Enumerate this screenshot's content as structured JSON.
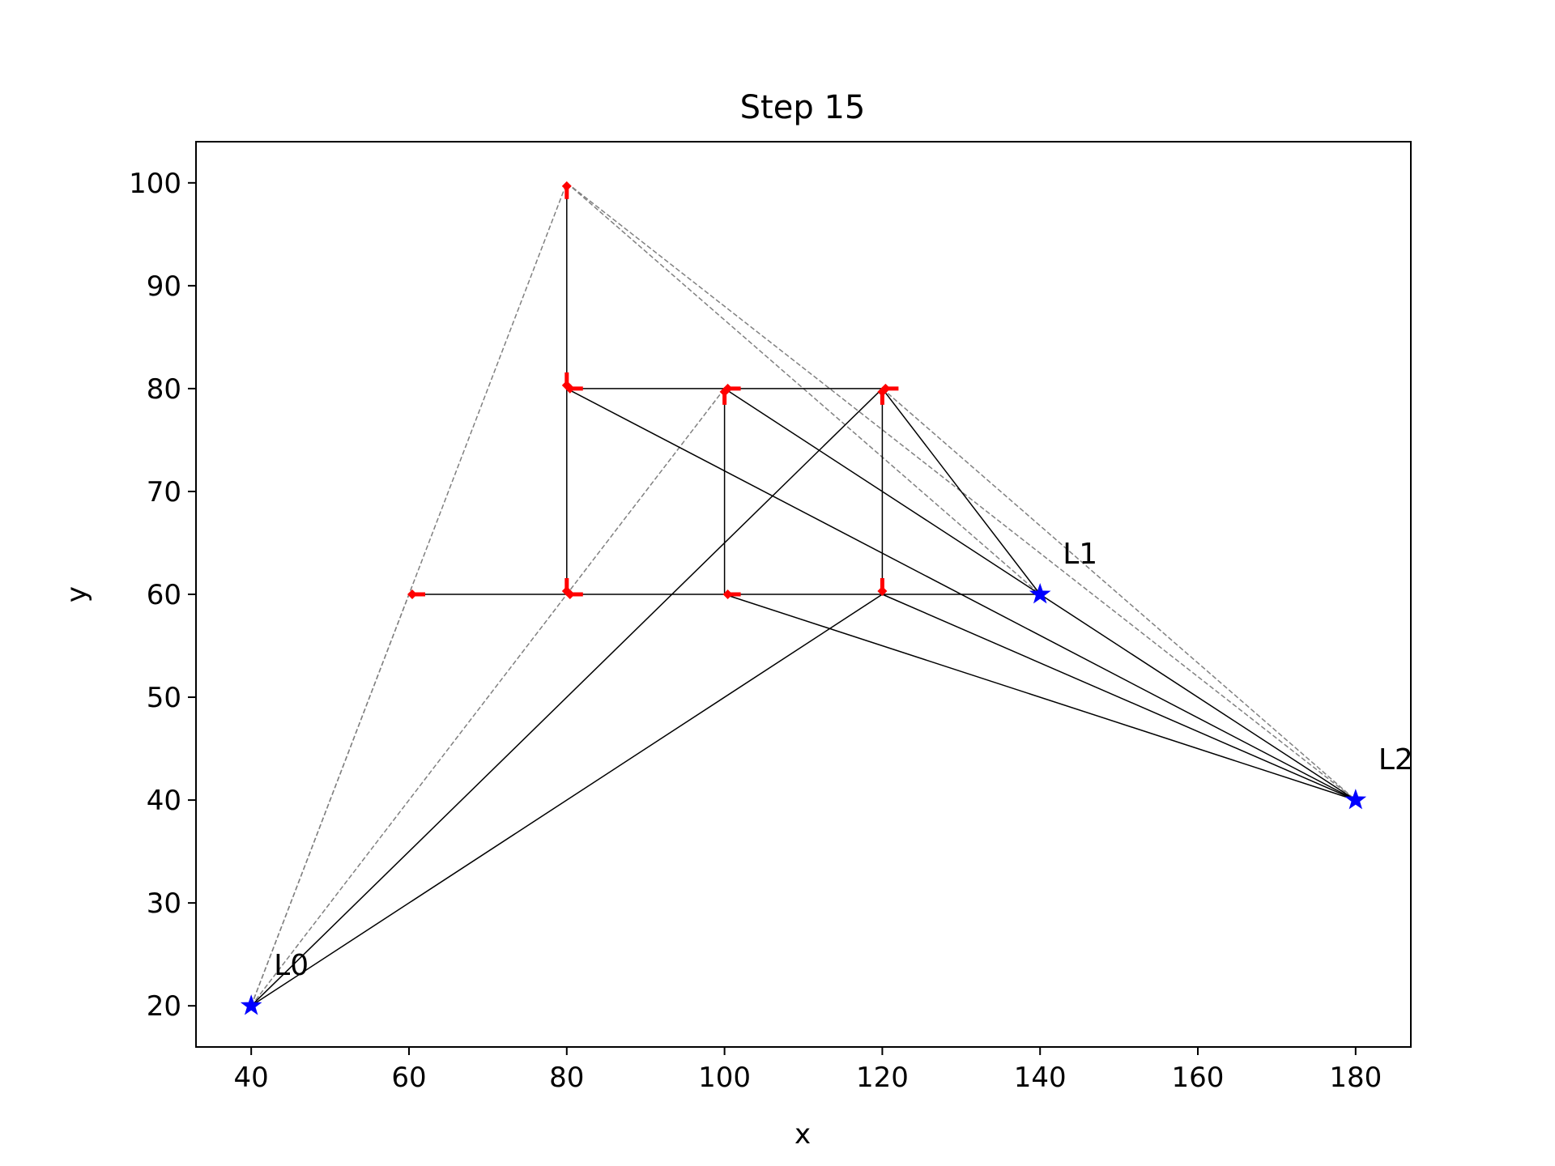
{
  "chart_data": {
    "type": "scatter",
    "title": "Step 15",
    "xlabel": "x",
    "ylabel": "y",
    "xlim": [
      33,
      187
    ],
    "ylim": [
      16,
      104
    ],
    "xticks": [
      40,
      60,
      80,
      100,
      120,
      140,
      160,
      180
    ],
    "yticks": [
      20,
      30,
      40,
      50,
      60,
      70,
      80,
      90,
      100
    ],
    "grid": false,
    "colors": {
      "landmark": "#0000ff",
      "pose": "#ff0000",
      "edge": "#000000",
      "observation": "#808080"
    },
    "landmarks": [
      {
        "label": "L0",
        "x": 40,
        "y": 20
      },
      {
        "label": "L1",
        "x": 140,
        "y": 60
      },
      {
        "label": "L2",
        "x": 180,
        "y": 40
      }
    ],
    "poses": [
      {
        "x": 60,
        "y": 60,
        "heading": 0
      },
      {
        "x": 80,
        "y": 60,
        "heading": 0
      },
      {
        "x": 80,
        "y": 60,
        "heading": 90
      },
      {
        "x": 80,
        "y": 80,
        "heading": 90
      },
      {
        "x": 80,
        "y": 100,
        "heading": 270
      },
      {
        "x": 80,
        "y": 80,
        "heading": 0
      },
      {
        "x": 100,
        "y": 80,
        "heading": 0
      },
      {
        "x": 100,
        "y": 80,
        "heading": 270
      },
      {
        "x": 100,
        "y": 60,
        "heading": 0
      },
      {
        "x": 120,
        "y": 60,
        "heading": 90
      },
      {
        "x": 120,
        "y": 80,
        "heading": 0
      },
      {
        "x": 120,
        "y": 80,
        "heading": 270
      }
    ],
    "trajectory": [
      [
        [
          60,
          60
        ],
        [
          140,
          60
        ]
      ],
      [
        [
          80,
          60
        ],
        [
          80,
          100
        ]
      ],
      [
        [
          80,
          80
        ],
        [
          120,
          80
        ]
      ],
      [
        [
          100,
          80
        ],
        [
          100,
          60
        ]
      ],
      [
        [
          120,
          80
        ],
        [
          120,
          60
        ]
      ]
    ],
    "solid_edges": [
      [
        [
          40,
          20
        ],
        [
          120,
          80
        ]
      ],
      [
        [
          40,
          20
        ],
        [
          120,
          60
        ]
      ],
      [
        [
          80,
          80
        ],
        [
          180,
          40
        ]
      ],
      [
        [
          100,
          80
        ],
        [
          140,
          60
        ]
      ],
      [
        [
          120,
          80
        ],
        [
          140,
          60
        ]
      ],
      [
        [
          100,
          60
        ],
        [
          180,
          40
        ]
      ],
      [
        [
          120,
          60
        ],
        [
          180,
          40
        ]
      ],
      [
        [
          140,
          60
        ],
        [
          180,
          40
        ]
      ]
    ],
    "dashed_edges": [
      [
        [
          40,
          20
        ],
        [
          60,
          60
        ]
      ],
      [
        [
          40,
          20
        ],
        [
          80,
          100
        ]
      ],
      [
        [
          40,
          20
        ],
        [
          100,
          80
        ]
      ],
      [
        [
          80,
          100
        ],
        [
          140,
          60
        ]
      ],
      [
        [
          80,
          100
        ],
        [
          180,
          40
        ]
      ],
      [
        [
          120,
          80
        ],
        [
          180,
          40
        ]
      ]
    ]
  }
}
